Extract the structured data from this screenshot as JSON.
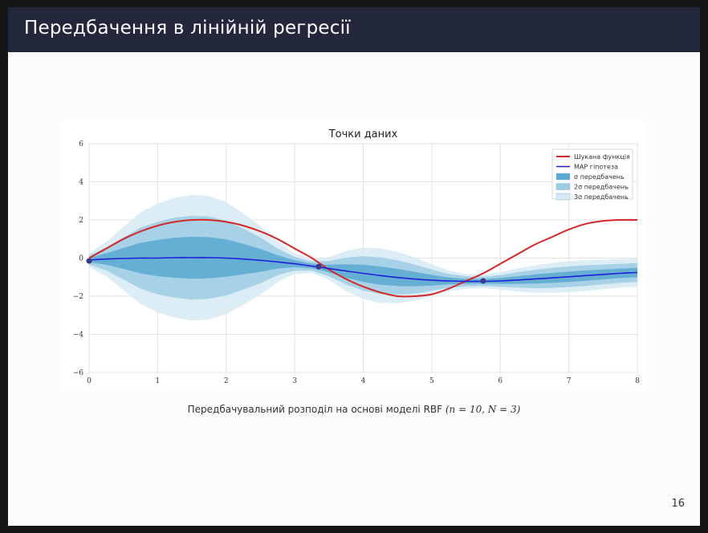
{
  "slide": {
    "title": "Передбачення в лінійній регресії",
    "caption_text": "Передбачувальний розподіл на основі моделі RBF ",
    "caption_math": "(n = 10, N = 3)",
    "page_number": "16"
  },
  "colors": {
    "header_bg": "#22273b",
    "target": "#d62728",
    "map": "#1f1fd6",
    "band_1sigma": "#5aa9d0",
    "band_2sigma": "#9ccbe4",
    "band_3sigma": "#d6eaf5",
    "points": "#3a3a8a"
  },
  "chart_data": {
    "type": "line",
    "title": "Точки даних",
    "xlabel": "",
    "ylabel": "",
    "xlim": [
      0,
      8
    ],
    "ylim": [
      -6,
      6
    ],
    "xticks": [
      0,
      1,
      2,
      3,
      4,
      5,
      6,
      7,
      8
    ],
    "yticks": [
      -6,
      -4,
      -2,
      0,
      2,
      4,
      6
    ],
    "grid": true,
    "legend_position": "top-right",
    "legend": [
      "Шукана функція",
      "MAP гіпотеза",
      "σ передбачень",
      "2σ передбачень",
      "3σ передбачень"
    ],
    "x": [
      0,
      0.25,
      0.5,
      0.75,
      1,
      1.25,
      1.5,
      1.75,
      2,
      2.25,
      2.5,
      2.75,
      3,
      3.25,
      3.5,
      3.75,
      4,
      4.25,
      4.5,
      4.75,
      5,
      5.25,
      5.5,
      5.75,
      6,
      6.25,
      6.5,
      6.75,
      7,
      7.25,
      7.5,
      7.75,
      8
    ],
    "series": [
      {
        "name": "Шукана функція",
        "values": [
          0.0,
          0.5,
          1.0,
          1.4,
          1.7,
          1.9,
          2.0,
          2.0,
          1.9,
          1.7,
          1.4,
          1.0,
          0.5,
          0.0,
          -0.6,
          -1.1,
          -1.5,
          -1.8,
          -2.0,
          -2.0,
          -1.9,
          -1.6,
          -1.2,
          -0.8,
          -0.3,
          0.2,
          0.7,
          1.1,
          1.5,
          1.8,
          1.95,
          2.0,
          2.0
        ]
      },
      {
        "name": "MAP гіпотеза",
        "values": [
          -0.1,
          -0.05,
          -0.02,
          0.0,
          0.0,
          0.02,
          0.02,
          0.02,
          0.0,
          -0.05,
          -0.12,
          -0.2,
          -0.3,
          -0.42,
          -0.55,
          -0.68,
          -0.8,
          -0.92,
          -1.02,
          -1.1,
          -1.16,
          -1.2,
          -1.22,
          -1.22,
          -1.2,
          -1.15,
          -1.1,
          -1.04,
          -0.98,
          -0.92,
          -0.86,
          -0.8,
          -0.76
        ]
      }
    ],
    "sigma": [
      0.12,
      0.3,
      0.55,
      0.8,
      0.95,
      1.05,
      1.1,
      1.08,
      0.98,
      0.8,
      0.6,
      0.35,
      0.18,
      0.12,
      0.2,
      0.35,
      0.45,
      0.48,
      0.45,
      0.38,
      0.28,
      0.18,
      0.13,
      0.12,
      0.15,
      0.2,
      0.24,
      0.26,
      0.27,
      0.27,
      0.26,
      0.25,
      0.25
    ],
    "points": {
      "name": "",
      "x": [
        0.0,
        3.35,
        5.75
      ],
      "y": [
        -0.15,
        -0.45,
        -1.2
      ]
    }
  }
}
